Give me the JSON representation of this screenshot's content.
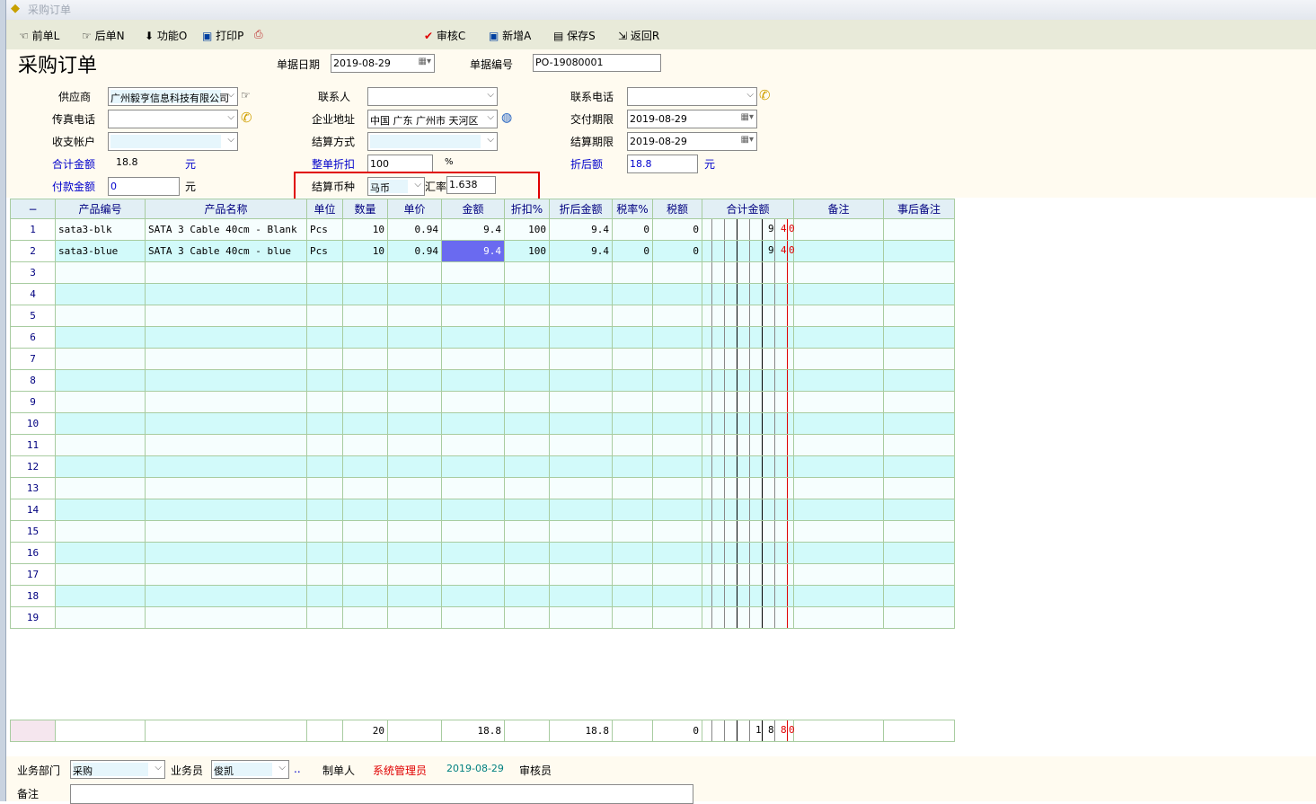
{
  "window": {
    "title": "采购订单"
  },
  "toolbar": {
    "prev": "前单L",
    "next": "后单N",
    "func": "功能O",
    "print": "打印P",
    "audit": "审核C",
    "add": "新增A",
    "save": "保存S",
    "back": "返回R"
  },
  "header": {
    "title": "采购订单",
    "date_label": "单据日期",
    "date": "2019-08-29",
    "no_label": "单据编号",
    "no": "PO-19080001"
  },
  "form": {
    "supplier_label": "供应商",
    "supplier": "广州毅亨信息科技有限公司",
    "contact_label": "联系人",
    "contact": "",
    "phone_label": "联系电话",
    "phone": "",
    "fax_label": "传真电话",
    "fax": "",
    "address_label": "企业地址",
    "address": "中国 广东 广州市 天河区",
    "delivery_label": "交付期限",
    "delivery": "2019-08-29",
    "account_label": "收支帐户",
    "account": "",
    "settle_method_label": "结算方式",
    "settle_method": "",
    "settle_date_label": "结算期限",
    "settle_date": "2019-08-29",
    "total_label": "合计金额",
    "total": "18.8",
    "yuan": "元",
    "discount_label": "整单折扣",
    "discount": "100",
    "percent": "%",
    "after_discount_label": "折后额",
    "after_discount": "18.8",
    "paid_label": "付款金额",
    "paid": "0",
    "currency_label": "结算币种",
    "currency": "马币",
    "rate_label": "汇率",
    "rate": "1.638"
  },
  "grid": {
    "columns": [
      "−",
      "产品编号",
      "产品名称",
      "单位",
      "数量",
      "单价",
      "金额",
      "折扣%",
      "折后金额",
      "税率%",
      "税额",
      "合计金额",
      "备注",
      "事后备注"
    ],
    "rows": [
      {
        "n": "1",
        "code": "sata3-blk",
        "name": "SATA 3 Cable 40cm - Blank",
        "unit": "Pcs",
        "qty": "10",
        "price": "0.94",
        "amount": "9.4",
        "disc": "100",
        "after": "9.4",
        "taxrate": "0",
        "tax": "0",
        "total_digits": [
          "9",
          "4",
          "0"
        ]
      },
      {
        "n": "2",
        "code": "sata3-blue",
        "name": "SATA 3 Cable 40cm - blue",
        "unit": "Pcs",
        "qty": "10",
        "price": "0.94",
        "amount": "9.4",
        "disc": "100",
        "after": "9.4",
        "taxrate": "0",
        "tax": "0",
        "total_digits": [
          "9",
          "4",
          "0"
        ]
      }
    ],
    "empty_rows": [
      "3",
      "4",
      "5",
      "6",
      "7",
      "8",
      "9",
      "10",
      "11",
      "12",
      "13",
      "14",
      "15",
      "16",
      "17",
      "18",
      "19"
    ],
    "footer": {
      "qty": "20",
      "amount": "18.8",
      "after": "18.8",
      "tax": "0",
      "total_digits": [
        "1",
        "8",
        "8",
        "0"
      ]
    }
  },
  "bottom": {
    "dept_label": "业务部门",
    "dept": "采购",
    "staff_label": "业务员",
    "staff": "俊凯",
    "dots": "..",
    "maker_label": "制单人",
    "maker": "系统管理员",
    "make_date": "2019-08-29",
    "auditor_label": "审核员",
    "note_label": "备注",
    "note": ""
  },
  "colors": {
    "selected_cell": "#6a6af0",
    "highlight": "#e00000",
    "row_alt": "#d2fafa",
    "label_blue": "#0000cc"
  }
}
